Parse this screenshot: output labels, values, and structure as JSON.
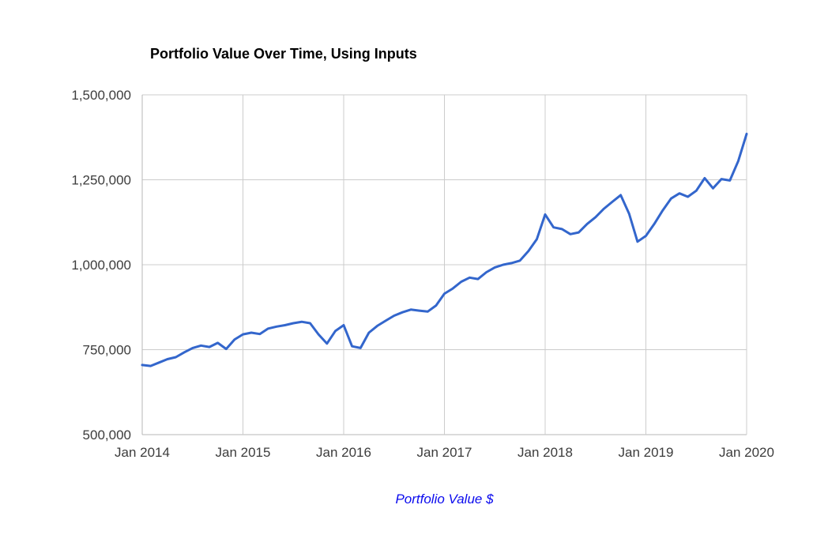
{
  "chart_data": {
    "type": "line",
    "title": "Portfolio Value Over Time, Using Inputs",
    "legend_label": "Portfolio Value $",
    "x_tick_labels": [
      "Jan 2014",
      "Jan 2015",
      "Jan 2016",
      "Jan 2017",
      "Jan 2018",
      "Jan 2019",
      "Jan 2020"
    ],
    "y_tick_labels": [
      "500,000",
      "750,000",
      "1,000,000",
      "1,250,000",
      "1,500,000"
    ],
    "y_ticks": [
      500000,
      750000,
      1000000,
      1250000,
      1500000
    ],
    "ylim": [
      500000,
      1500000
    ],
    "x_unit": "month",
    "x_range": [
      "Jan 2014",
      "Jan 2020"
    ],
    "grid": true,
    "legend_position": "bottom-center",
    "line_color": "#3366cc",
    "legend_color": "#0b0bee",
    "grid_color": "#cccccc",
    "axis_line_color": "#b7b7b7",
    "axis_text_color": "#3c3c3c",
    "values": [
      705000,
      702000,
      712000,
      722000,
      728000,
      742000,
      755000,
      762000,
      758000,
      770000,
      752000,
      780000,
      795000,
      800000,
      796000,
      812000,
      818000,
      822000,
      828000,
      832000,
      828000,
      795000,
      768000,
      805000,
      822000,
      760000,
      755000,
      800000,
      820000,
      835000,
      850000,
      860000,
      868000,
      865000,
      862000,
      880000,
      915000,
      930000,
      950000,
      962000,
      958000,
      978000,
      992000,
      1000000,
      1005000,
      1012000,
      1040000,
      1075000,
      1148000,
      1110000,
      1105000,
      1090000,
      1095000,
      1120000,
      1140000,
      1165000,
      1185000,
      1205000,
      1150000,
      1068000,
      1085000,
      1120000,
      1160000,
      1195000,
      1210000,
      1200000,
      1218000,
      1255000,
      1225000,
      1252000,
      1248000,
      1305000,
      1385000
    ]
  }
}
